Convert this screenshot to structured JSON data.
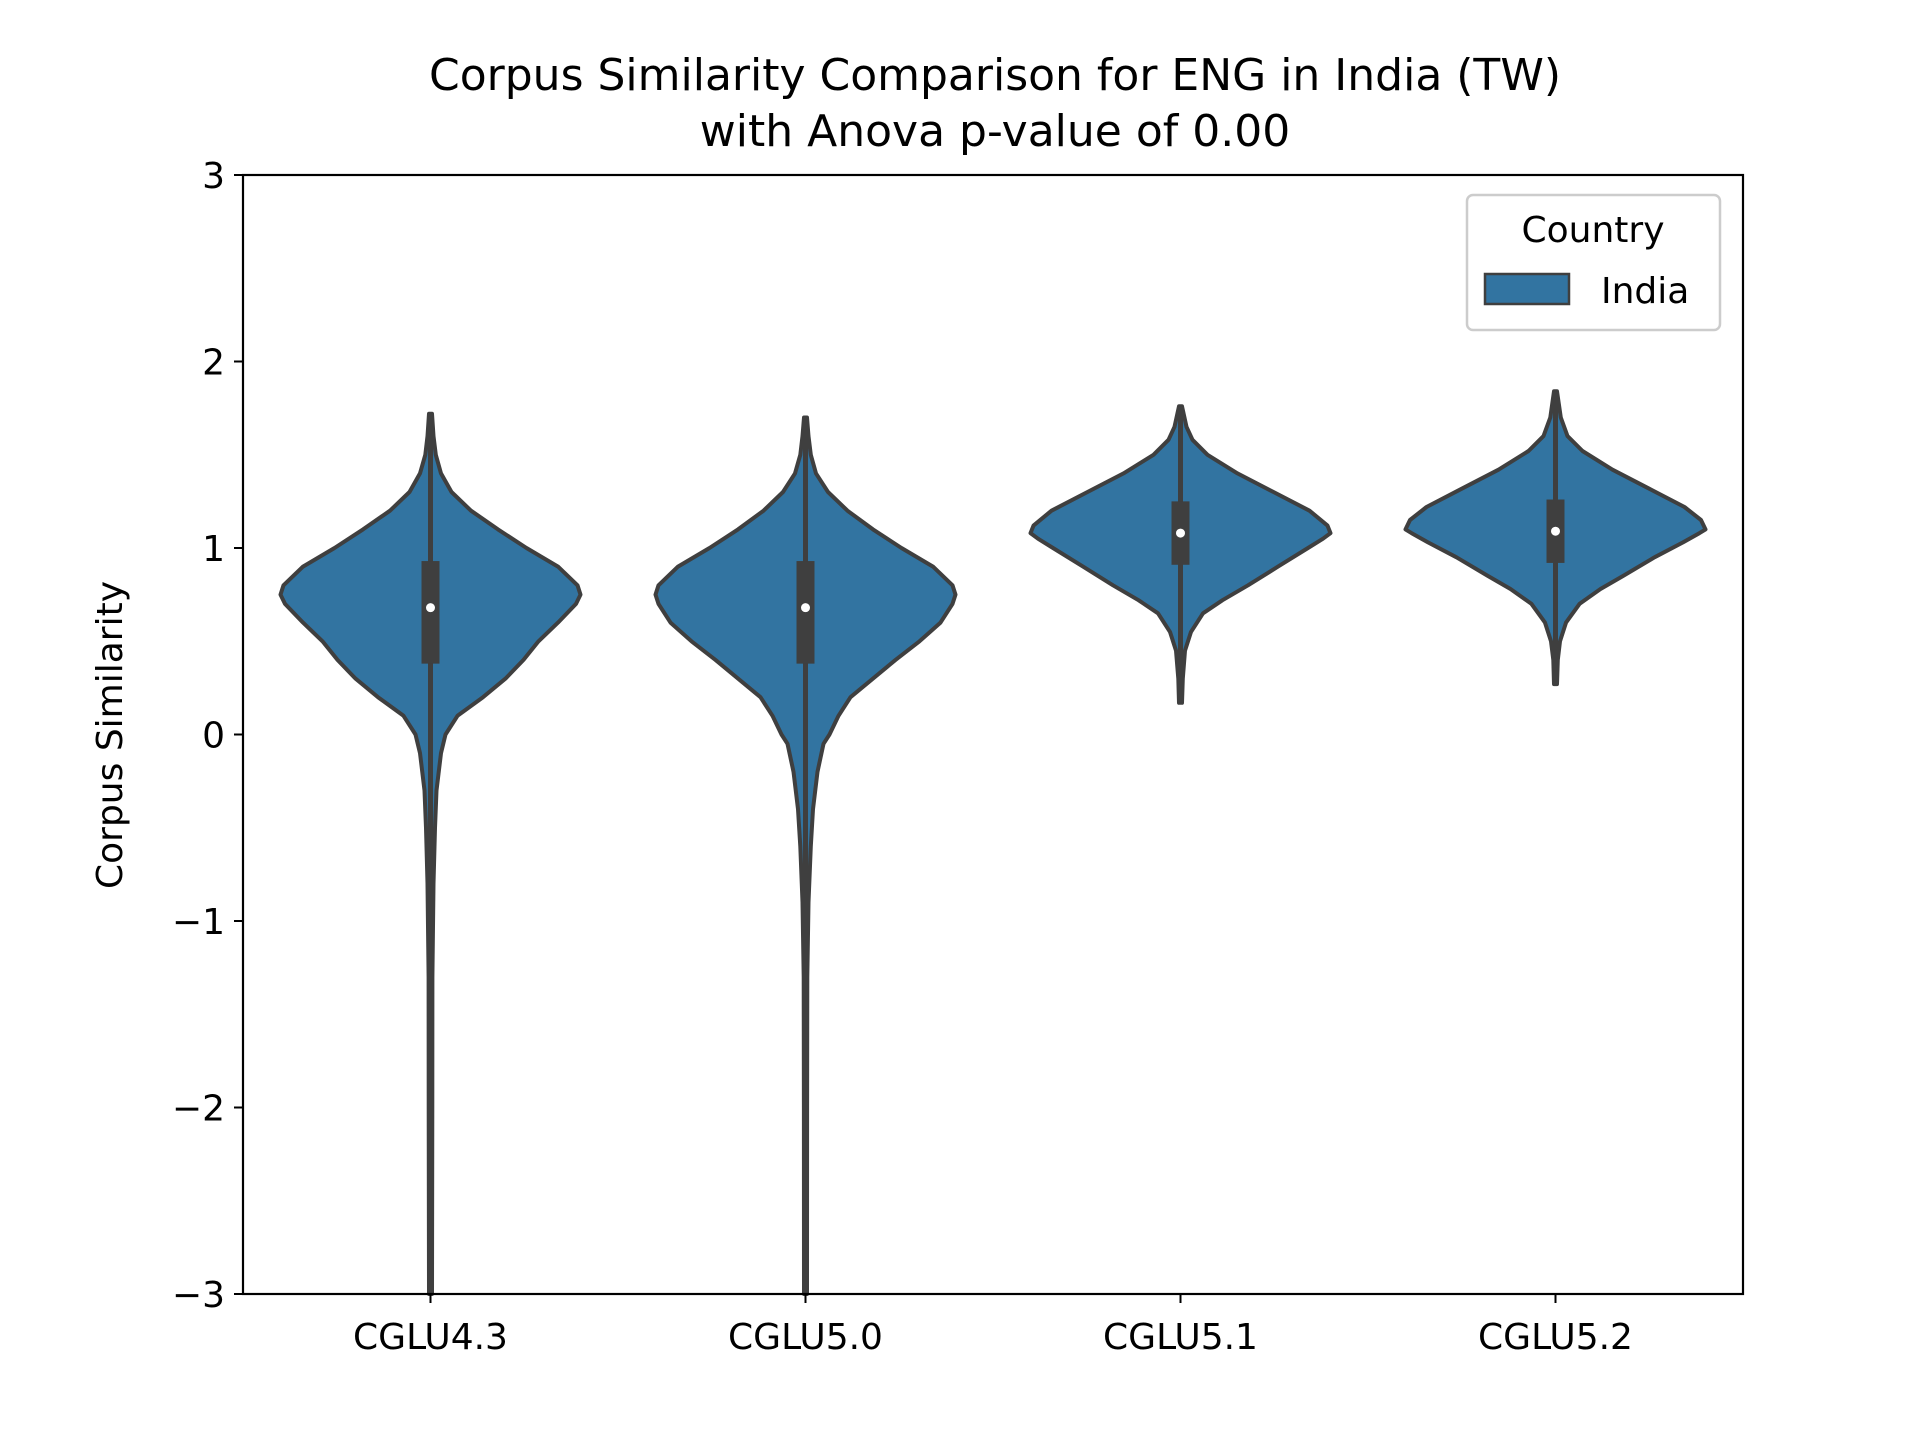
{
  "chart_data": {
    "type": "violin",
    "title_line1": "Corpus Similarity Comparison for ENG in India (TW)",
    "title_line2": "with Anova p-value of 0.00",
    "xlabel": "",
    "ylabel": "Corpus Similarity",
    "ylim": [
      -3,
      3
    ],
    "yticks": [
      -3,
      -2,
      -1,
      0,
      1,
      2,
      3
    ],
    "ytick_labels": [
      "−3",
      "−2",
      "−1",
      "0",
      "1",
      "2",
      "3"
    ],
    "categories": [
      "CGLU4.3",
      "CGLU5.0",
      "CGLU5.1",
      "CGLU5.2"
    ],
    "legend": {
      "title": "Country",
      "entries": [
        "India"
      ],
      "placement": "top-right"
    },
    "colors": {
      "violin_fill": "#3274a1",
      "violin_edge": "#3f3f3f",
      "median": "#ffffff"
    },
    "series": [
      {
        "name": "India",
        "violins": [
          {
            "category": "CGLU4.3",
            "min": -3.0,
            "q1": 0.38,
            "median": 0.68,
            "q3": 0.93,
            "max": 1.72,
            "profile": [
              [
                -3.0,
                0.01
              ],
              [
                -2.0,
                0.012
              ],
              [
                -1.3,
                0.013
              ],
              [
                -0.8,
                0.02
              ],
              [
                -0.5,
                0.03
              ],
              [
                -0.3,
                0.04
              ],
              [
                -0.1,
                0.07
              ],
              [
                0.0,
                0.1
              ],
              [
                0.1,
                0.18
              ],
              [
                0.2,
                0.35
              ],
              [
                0.3,
                0.5
              ],
              [
                0.4,
                0.62
              ],
              [
                0.5,
                0.72
              ],
              [
                0.6,
                0.85
              ],
              [
                0.7,
                0.97
              ],
              [
                0.75,
                1.0
              ],
              [
                0.8,
                0.98
              ],
              [
                0.9,
                0.85
              ],
              [
                1.0,
                0.64
              ],
              [
                1.1,
                0.45
              ],
              [
                1.2,
                0.27
              ],
              [
                1.3,
                0.14
              ],
              [
                1.4,
                0.07
              ],
              [
                1.5,
                0.035
              ],
              [
                1.6,
                0.02
              ],
              [
                1.72,
                0.01
              ]
            ]
          },
          {
            "category": "CGLU5.0",
            "min": -3.0,
            "q1": 0.38,
            "median": 0.68,
            "q3": 0.93,
            "max": 1.7,
            "profile": [
              [
                -3.0,
                0.01
              ],
              [
                -2.0,
                0.011
              ],
              [
                -1.3,
                0.012
              ],
              [
                -0.9,
                0.02
              ],
              [
                -0.6,
                0.035
              ],
              [
                -0.4,
                0.05
              ],
              [
                -0.2,
                0.08
              ],
              [
                -0.05,
                0.12
              ],
              [
                0.0,
                0.16
              ],
              [
                0.1,
                0.22
              ],
              [
                0.2,
                0.3
              ],
              [
                0.3,
                0.45
              ],
              [
                0.4,
                0.6
              ],
              [
                0.5,
                0.76
              ],
              [
                0.6,
                0.9
              ],
              [
                0.7,
                0.98
              ],
              [
                0.75,
                1.0
              ],
              [
                0.8,
                0.98
              ],
              [
                0.9,
                0.85
              ],
              [
                1.0,
                0.64
              ],
              [
                1.1,
                0.45
              ],
              [
                1.2,
                0.28
              ],
              [
                1.3,
                0.15
              ],
              [
                1.4,
                0.07
              ],
              [
                1.5,
                0.035
              ],
              [
                1.6,
                0.02
              ],
              [
                1.7,
                0.01
              ]
            ]
          },
          {
            "category": "CGLU5.1",
            "min": 0.17,
            "q1": 0.91,
            "median": 1.08,
            "q3": 1.25,
            "max": 1.76,
            "profile": [
              [
                0.17,
                0.01
              ],
              [
                0.3,
                0.015
              ],
              [
                0.45,
                0.03
              ],
              [
                0.55,
                0.07
              ],
              [
                0.65,
                0.15
              ],
              [
                0.72,
                0.28
              ],
              [
                0.8,
                0.45
              ],
              [
                0.9,
                0.65
              ],
              [
                1.0,
                0.85
              ],
              [
                1.05,
                0.95
              ],
              [
                1.08,
                1.0
              ],
              [
                1.12,
                0.98
              ],
              [
                1.2,
                0.86
              ],
              [
                1.3,
                0.62
              ],
              [
                1.4,
                0.38
              ],
              [
                1.5,
                0.18
              ],
              [
                1.58,
                0.08
              ],
              [
                1.65,
                0.04
              ],
              [
                1.76,
                0.01
              ]
            ]
          },
          {
            "category": "CGLU5.2",
            "min": 0.27,
            "q1": 0.92,
            "median": 1.09,
            "q3": 1.26,
            "max": 1.84,
            "profile": [
              [
                0.27,
                0.01
              ],
              [
                0.4,
                0.015
              ],
              [
                0.5,
                0.03
              ],
              [
                0.6,
                0.07
              ],
              [
                0.7,
                0.16
              ],
              [
                0.78,
                0.3
              ],
              [
                0.85,
                0.45
              ],
              [
                0.95,
                0.66
              ],
              [
                1.03,
                0.85
              ],
              [
                1.08,
                0.96
              ],
              [
                1.1,
                1.0
              ],
              [
                1.15,
                0.97
              ],
              [
                1.22,
                0.86
              ],
              [
                1.32,
                0.62
              ],
              [
                1.42,
                0.38
              ],
              [
                1.52,
                0.18
              ],
              [
                1.6,
                0.08
              ],
              [
                1.7,
                0.035
              ],
              [
                1.84,
                0.01
              ]
            ]
          }
        ]
      }
    ]
  }
}
